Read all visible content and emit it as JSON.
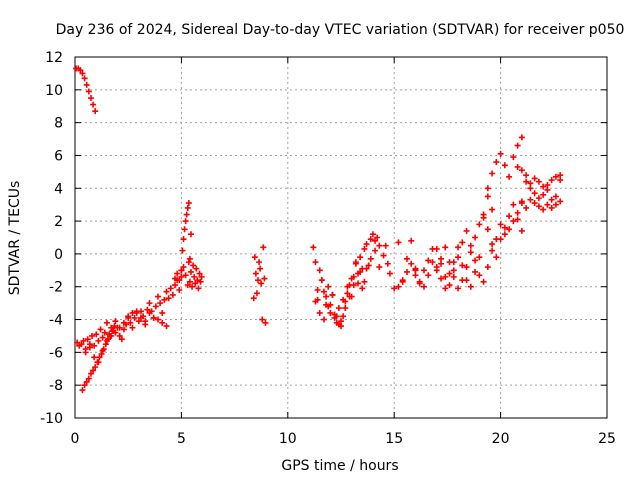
{
  "chart_data": {
    "type": "scatter",
    "title": "Day 236 of 2024, Sidereal Day-to-day VTEC variation (SDTVAR) for receiver p050",
    "xlabel": "GPS time / hours",
    "ylabel": "SDTVAR / TECUs",
    "xlim": [
      0,
      25
    ],
    "ylim": [
      -10,
      12
    ],
    "x_ticks": [
      0,
      5,
      10,
      15,
      20,
      25
    ],
    "y_ticks": [
      -10,
      -8,
      -6,
      -4,
      -2,
      0,
      2,
      4,
      6,
      8,
      10,
      12
    ],
    "grid": true,
    "marker": "+",
    "colors": {
      "marker": "#ff0000",
      "grid": "#a0a0a0",
      "axis": "#000000"
    },
    "series": [
      {
        "name": "SDTVAR",
        "x": [
          0.05,
          0.15,
          0.25,
          0.35,
          0.45,
          0.55,
          0.65,
          0.75,
          0.85,
          0.95,
          0.1,
          0.2,
          0.3,
          0.4,
          0.5,
          0.6,
          0.7,
          0.8,
          0.9,
          1.0,
          1.1,
          1.2,
          1.3,
          1.4,
          1.5,
          1.6,
          1.7,
          1.8,
          1.9,
          2.0,
          2.1,
          2.2,
          2.3,
          2.4,
          2.5,
          2.6,
          2.7,
          2.8,
          2.9,
          3.0,
          3.1,
          3.2,
          3.3,
          3.4,
          3.5,
          3.6,
          3.7,
          3.8,
          3.9,
          4.0,
          4.1,
          4.2,
          4.3,
          4.4,
          4.5,
          4.6,
          4.7,
          4.8,
          4.9,
          5.0,
          0.35,
          0.45,
          0.55,
          0.65,
          0.75,
          0.85,
          0.95,
          1.05,
          1.15,
          1.25,
          1.35,
          1.45,
          1.55,
          1.65,
          1.75,
          1.85,
          0.5,
          0.7,
          0.9,
          1.1,
          1.3,
          1.5,
          1.7,
          1.9,
          2.1,
          2.3,
          2.5,
          2.7,
          2.9,
          3.1,
          3.3,
          3.5,
          3.7,
          3.9,
          4.1,
          4.3,
          4.7,
          4.8,
          4.9,
          5.0,
          5.1,
          5.2,
          5.3,
          5.35,
          5.4,
          5.45,
          5.5,
          5.55,
          5.6,
          5.65,
          5.7,
          5.75,
          5.8,
          5.85,
          5.9,
          5.95,
          5.0,
          5.05,
          5.1,
          5.15,
          5.2,
          5.25,
          5.3,
          5.35,
          5.4,
          5.45,
          8.4,
          8.45,
          8.5,
          8.55,
          8.6,
          8.65,
          8.7,
          8.75,
          8.8,
          8.85,
          8.9,
          8.95,
          11.2,
          11.3,
          11.4,
          11.5,
          11.6,
          11.7,
          11.8,
          11.9,
          12.0,
          12.1,
          12.2,
          12.3,
          12.4,
          12.5,
          12.6,
          12.7,
          12.8,
          12.9,
          13.0,
          13.1,
          13.2,
          13.3,
          13.4,
          13.5,
          13.6,
          13.7,
          13.8,
          13.9,
          14.0,
          14.1,
          14.2,
          14.3,
          11.3,
          11.5,
          11.7,
          11.9,
          12.1,
          12.3,
          12.5,
          12.7,
          12.9,
          13.1,
          13.3,
          13.5,
          13.7,
          13.9,
          14.1,
          14.3,
          14.5,
          14.7,
          11.4,
          11.6,
          11.8,
          12.0,
          12.2,
          12.4,
          12.6,
          12.8,
          13.0,
          13.2,
          13.4,
          13.6,
          14.6,
          14.8,
          15.0,
          15.2,
          15.4,
          15.6,
          15.8,
          16.0,
          15.2,
          15.4,
          15.6,
          15.8,
          16.0,
          16.2,
          16.4,
          16.6,
          16.8,
          17.0,
          17.2,
          17.4,
          17.6,
          17.8,
          18.0,
          18.2,
          18.4,
          18.6,
          18.8,
          19.0,
          16.0,
          16.2,
          16.4,
          16.6,
          16.8,
          17.0,
          17.2,
          17.4,
          17.6,
          17.8,
          18.0,
          18.2,
          18.4,
          18.6,
          18.8,
          19.0,
          19.2,
          19.4,
          19.6,
          19.8,
          17.0,
          17.2,
          17.4,
          17.6,
          17.8,
          18.0,
          18.2,
          18.4,
          18.6,
          18.8,
          19.0,
          19.2,
          19.4,
          19.6,
          19.8,
          20.0,
          20.2,
          20.4,
          20.6,
          20.8,
          21.0,
          19.4,
          19.6,
          19.8,
          20.0,
          20.2,
          20.4,
          20.6,
          20.8,
          21.0,
          19.2,
          19.4,
          19.6,
          19.8,
          20.0,
          20.2,
          20.4,
          20.6,
          20.8,
          21.0,
          20.8,
          21.0,
          21.2,
          21.4,
          21.6,
          21.8,
          22.0,
          22.2,
          22.4,
          22.6,
          22.8,
          21.2,
          21.4,
          21.6,
          21.8,
          22.0,
          22.2,
          22.4,
          22.6,
          22.8,
          21.0,
          21.2,
          21.4,
          21.6,
          21.8,
          22.0,
          22.2,
          22.4,
          22.6,
          22.8
        ],
        "y": [
          11.3,
          11.3,
          11.2,
          11.0,
          10.7,
          10.3,
          9.9,
          9.5,
          9.1,
          8.7,
          -5.4,
          -5.6,
          -5.5,
          -5.3,
          -5.8,
          -5.2,
          -5.5,
          -5.0,
          -5.6,
          -4.9,
          -5.3,
          -4.6,
          -5.1,
          -4.8,
          -4.2,
          -4.9,
          -4.5,
          -4.7,
          -4.1,
          -4.5,
          -5.0,
          -5.2,
          -4.6,
          -4.3,
          -3.8,
          -4.2,
          -4.5,
          -3.9,
          -3.6,
          -4.1,
          -3.5,
          -3.8,
          -4.3,
          -3.4,
          -3.0,
          -3.5,
          -3.9,
          -3.2,
          -2.6,
          -3.0,
          -3.6,
          -2.8,
          -2.3,
          -2.7,
          -2.1,
          -2.5,
          -1.9,
          -1.6,
          -2.2,
          -1.4,
          -8.3,
          -8.0,
          -7.8,
          -7.6,
          -7.3,
          -7.1,
          -6.9,
          -6.6,
          -6.3,
          -6.1,
          -5.8,
          -5.5,
          -5.2,
          -5.0,
          -4.7,
          -4.4,
          -6.0,
          -5.7,
          -6.3,
          -6.6,
          -5.9,
          -5.3,
          -5.0,
          -4.8,
          -4.5,
          -4.2,
          -3.9,
          -3.6,
          -3.5,
          -3.9,
          -4.1,
          -3.6,
          -3.9,
          -4.0,
          -4.2,
          -4.4,
          -1.5,
          -1.2,
          -1.6,
          -1.0,
          -0.8,
          -1.3,
          -1.9,
          -0.5,
          -1.7,
          -1.1,
          -2.0,
          -0.7,
          -1.4,
          -1.8,
          -0.9,
          -1.6,
          -2.1,
          -1.2,
          -1.7,
          -1.4,
          -1.0,
          0.2,
          0.9,
          1.5,
          2.0,
          2.4,
          2.8,
          3.1,
          -0.3,
          1.2,
          -2.7,
          -0.2,
          -1.2,
          -2.4,
          -1.6,
          -0.5,
          -0.9,
          -1.8,
          -4.0,
          0.4,
          -1.5,
          -4.2,
          0.4,
          -0.5,
          -2.8,
          -1.0,
          -1.6,
          -2.3,
          -3.1,
          -2.0,
          -3.6,
          -2.5,
          -3.9,
          -4.2,
          -3.3,
          -4.1,
          -3.8,
          -2.9,
          -2.4,
          -1.9,
          -2.6,
          -1.4,
          -0.6,
          -1.8,
          -0.2,
          -0.9,
          0.3,
          0.6,
          -0.7,
          0.9,
          1.2,
          0.8,
          1.0,
          0.5,
          -2.9,
          -3.6,
          -4.0,
          -3.2,
          -2.5,
          -3.8,
          -4.4,
          -3.3,
          -2.6,
          -1.9,
          -1.2,
          -2.1,
          -0.9,
          -0.3,
          0.2,
          -0.8,
          -0.1,
          -0.6,
          -2.2,
          -1.6,
          -2.6,
          -3.1,
          -3.7,
          -4.3,
          -2.8,
          -2.0,
          -1.5,
          -0.5,
          -1.1,
          -1.7,
          0.5,
          -1.2,
          -2.1,
          0.7,
          -1.7,
          -0.3,
          0.8,
          -1.0,
          -2.0,
          -1.6,
          -1.1,
          -0.6,
          -1.3,
          -1.8,
          -1.0,
          -0.4,
          0.3,
          -0.8,
          -1.5,
          -2.1,
          -1.2,
          -0.5,
          0.4,
          -0.7,
          -1.6,
          -2.0,
          -1.1,
          -0.2,
          -0.9,
          -1.7,
          -2.0,
          -1.3,
          -0.5,
          0.3,
          -0.6,
          -1.4,
          -1.9,
          -1.0,
          -0.2,
          0.7,
          1.4,
          0.5,
          -0.4,
          -1.3,
          -1.7,
          -0.8,
          0.2,
          0.9,
          -1.0,
          -0.3,
          0.4,
          -0.5,
          -1.4,
          -2.1,
          -1.6,
          -0.8,
          0.1,
          1.0,
          1.8,
          2.4,
          1.5,
          0.6,
          -0.2,
          0.9,
          1.6,
          2.3,
          3.0,
          2.1,
          1.4,
          4.0,
          4.9,
          5.6,
          6.1,
          5.4,
          4.7,
          5.9,
          6.6,
          7.1,
          2.2,
          3.5,
          2.7,
          0.9,
          1.8,
          1.2,
          1.5,
          2.0,
          2.5,
          3.1,
          5.3,
          5.1,
          4.8,
          4.3,
          4.6,
          4.4,
          4.1,
          4.2,
          4.5,
          4.7,
          4.5,
          4.4,
          4.0,
          3.7,
          3.4,
          3.6,
          3.9,
          3.3,
          3.5,
          4.8,
          3.2,
          2.8,
          3.3,
          3.1,
          2.9,
          2.7,
          3.0,
          2.8,
          3.0,
          3.2
        ]
      }
    ]
  }
}
